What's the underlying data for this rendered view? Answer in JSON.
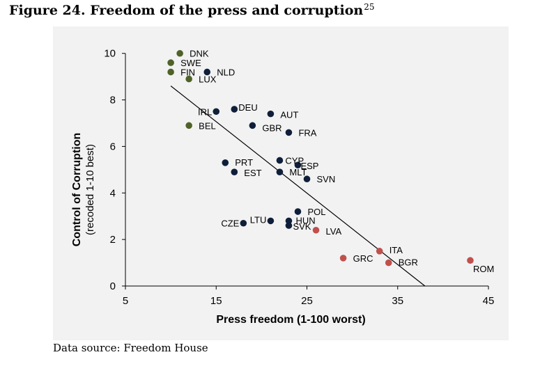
{
  "figure": {
    "title": "Figure 24. Freedom of the press and corruption",
    "footnote_ref": "25",
    "source": "Data source: Freedom House"
  },
  "colors": {
    "panel_bg": "#f2f2f2",
    "group_good": "#4f6228",
    "group_mid": "#0f1f3a",
    "group_bad": "#c0504d",
    "trendline": "#000000"
  },
  "chart_data": {
    "type": "scatter",
    "title": "",
    "xlabel": "Press freedom (1-100 worst)",
    "ylabel": "Control of Corruption",
    "ylabel_sub": "(recoded 1-10 best)",
    "xlim": [
      5,
      45
    ],
    "ylim": [
      0,
      10.5
    ],
    "xticks": [
      5,
      15,
      25,
      35,
      45
    ],
    "yticks": [
      0,
      2,
      4,
      6,
      8,
      10
    ],
    "grid": false,
    "legend": "none",
    "trendline": {
      "x": [
        10,
        38
      ],
      "y": [
        8.6,
        0
      ]
    },
    "points": [
      {
        "label": "DNK",
        "x": 11,
        "y": 10.0,
        "group": "good"
      },
      {
        "label": "SWE",
        "x": 10,
        "y": 9.6,
        "group": "good"
      },
      {
        "label": "FIN",
        "x": 10,
        "y": 9.2,
        "group": "good"
      },
      {
        "label": "NLD",
        "x": 14,
        "y": 9.2,
        "group": "mid"
      },
      {
        "label": "LUX",
        "x": 12,
        "y": 8.9,
        "group": "good"
      },
      {
        "label": "IRL",
        "x": 15,
        "y": 7.5,
        "group": "mid"
      },
      {
        "label": "DEU",
        "x": 17,
        "y": 7.6,
        "group": "mid"
      },
      {
        "label": "AUT",
        "x": 21,
        "y": 7.4,
        "group": "mid"
      },
      {
        "label": "BEL",
        "x": 12,
        "y": 6.9,
        "group": "good"
      },
      {
        "label": "GBR",
        "x": 19,
        "y": 6.9,
        "group": "mid"
      },
      {
        "label": "FRA",
        "x": 23,
        "y": 6.6,
        "group": "mid"
      },
      {
        "label": "CYP",
        "x": 22,
        "y": 5.4,
        "group": "mid"
      },
      {
        "label": "ESP",
        "x": 24,
        "y": 5.2,
        "group": "mid"
      },
      {
        "label": "PRT",
        "x": 16,
        "y": 5.3,
        "group": "mid"
      },
      {
        "label": "EST",
        "x": 17,
        "y": 4.9,
        "group": "mid"
      },
      {
        "label": "MLT",
        "x": 22,
        "y": 4.9,
        "group": "mid"
      },
      {
        "label": "SVN",
        "x": 25,
        "y": 4.6,
        "group": "mid"
      },
      {
        "label": "POL",
        "x": 24,
        "y": 3.2,
        "group": "mid"
      },
      {
        "label": "CZE",
        "x": 18,
        "y": 2.7,
        "group": "mid"
      },
      {
        "label": "LTU",
        "x": 21,
        "y": 2.8,
        "group": "mid"
      },
      {
        "label": "HUN",
        "x": 23,
        "y": 2.8,
        "group": "mid"
      },
      {
        "label": "SVK",
        "x": 23,
        "y": 2.6,
        "group": "mid"
      },
      {
        "label": "LVA",
        "x": 26,
        "y": 2.4,
        "group": "bad"
      },
      {
        "label": "ITA",
        "x": 33,
        "y": 1.5,
        "group": "bad"
      },
      {
        "label": "GRC",
        "x": 29,
        "y": 1.2,
        "group": "bad"
      },
      {
        "label": "BGR",
        "x": 34,
        "y": 1.0,
        "group": "bad"
      },
      {
        "label": "ROM",
        "x": 43,
        "y": 1.1,
        "group": "bad"
      }
    ]
  }
}
